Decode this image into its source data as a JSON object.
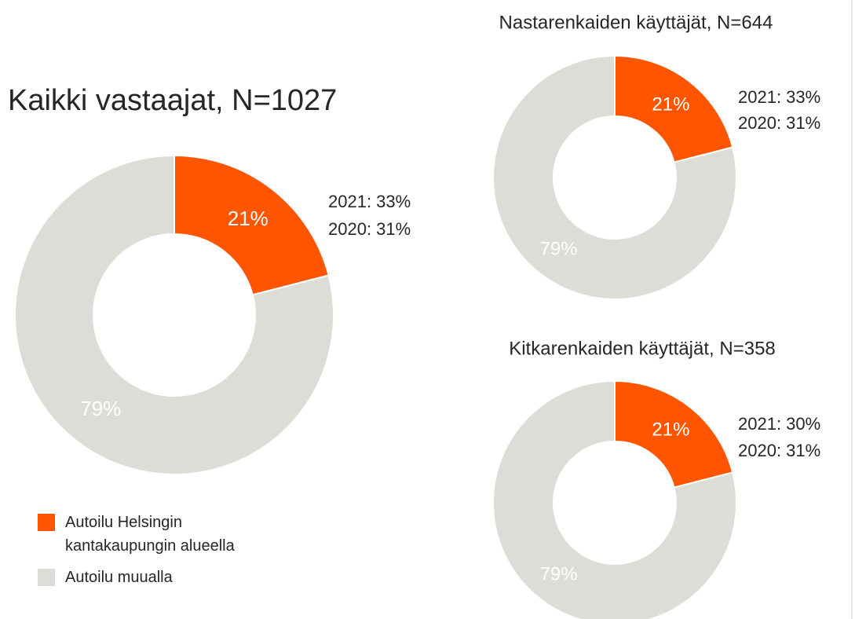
{
  "chart_data": [
    {
      "type": "pie",
      "title": "Kaikki vastaajat, N=1027",
      "categories": [
        "Autoilu Helsingin kantakaupungin alueella",
        "Autoilu muualla"
      ],
      "values": [
        21,
        79
      ],
      "value_labels": [
        "21%",
        "79%"
      ],
      "colors": [
        "#ff5500",
        "#dedcd6"
      ],
      "annotations": [
        "2021: 33%",
        "2020: 31%"
      ]
    },
    {
      "type": "pie",
      "title": "Nastarenkaiden käyttäjät, N=644",
      "values": [
        21,
        79
      ],
      "value_labels": [
        "21%",
        "79%"
      ],
      "colors": [
        "#ff5500",
        "#dedcd6"
      ],
      "annotations": [
        "2021: 33%",
        "2020: 31%"
      ]
    },
    {
      "type": "pie",
      "title": "Kitkarenkaiden käyttäjät, N=358",
      "values": [
        21,
        79
      ],
      "value_labels": [
        "21%",
        "79%"
      ],
      "colors": [
        "#ff5500",
        "#dedcd6"
      ],
      "annotations": [
        "2021: 30%",
        "2020: 31%"
      ]
    }
  ]
}
